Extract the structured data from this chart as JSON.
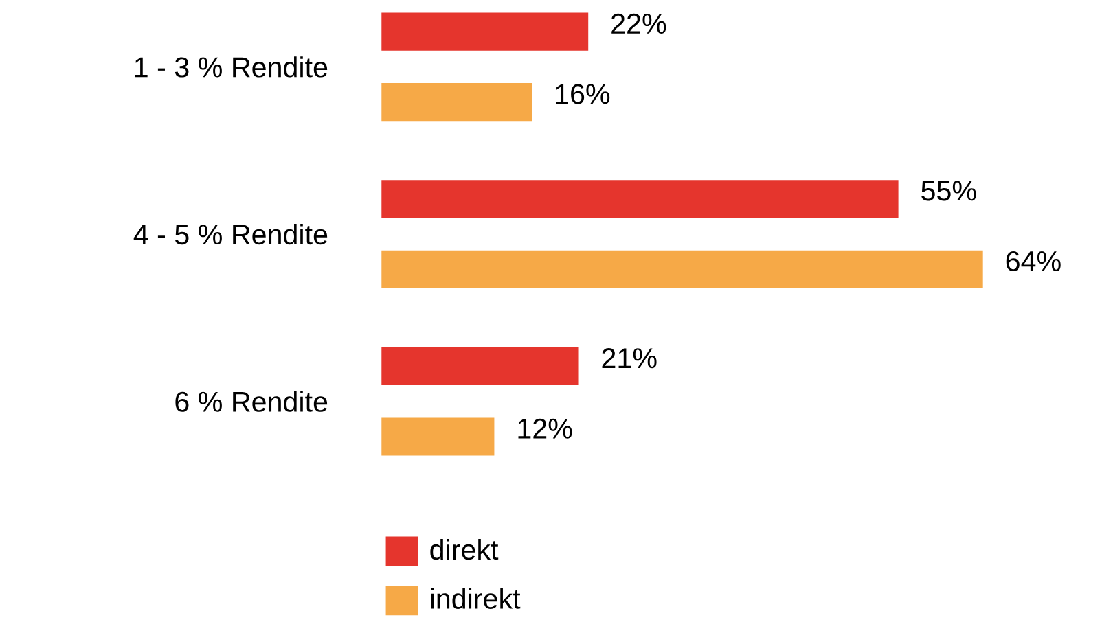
{
  "chart_data": {
    "type": "bar",
    "orientation": "horizontal",
    "categories": [
      "1 - 3 % Rendite",
      "4 - 5 % Rendite",
      "6 % Rendite"
    ],
    "series": [
      {
        "name": "direkt",
        "color": "#e5352d",
        "values": [
          22,
          55,
          21
        ],
        "value_labels": [
          "22%",
          "55%",
          "21%"
        ]
      },
      {
        "name": "indirekt",
        "color": "#f6a947",
        "values": [
          16,
          64,
          12
        ],
        "value_labels": [
          "16%",
          "64%",
          "12%"
        ]
      }
    ],
    "legend": "bottom"
  }
}
